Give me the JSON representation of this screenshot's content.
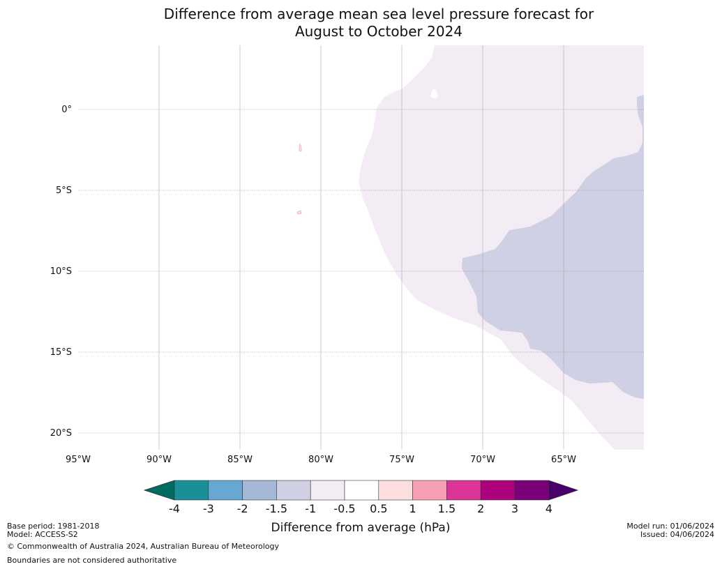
{
  "title": {
    "line1": "Difference from average mean sea level pressure forecast for",
    "line2": "August to October 2024"
  },
  "map": {
    "latitude_labels": [
      "0°",
      "5°S",
      "10°S",
      "15°S",
      "20°S"
    ],
    "longitude_labels": [
      "95°W",
      "90°W",
      "85°W",
      "80°W",
      "75°W",
      "70°W",
      "65°W"
    ],
    "gridlines": true,
    "regions": [
      {
        "name": "minus-0.5-to-minus-1",
        "color": "#f3ecf5"
      },
      {
        "name": "minus-1-to-minus-1.5",
        "color": "#d0d0e4"
      },
      {
        "name": "0.5-to-1-islands",
        "color": "#fcdede"
      }
    ]
  },
  "colorbar": {
    "title": "Difference from average (hPa)",
    "tick_labels": [
      "-4",
      "-3",
      "-2",
      "-1.5",
      "-1",
      "-0.5",
      "0.5",
      "1",
      "1.5",
      "2",
      "3",
      "4"
    ],
    "colors": [
      "#006b60",
      "#1a8f98",
      "#66a8d2",
      "#a5b8d6",
      "#d0d0e4",
      "#f3ecf5",
      "#ffffff",
      "#fcdede",
      "#f7a0b5",
      "#dd3497",
      "#ae017e",
      "#7a0177",
      "#49006a"
    ]
  },
  "footer": {
    "base_period": "Base period: 1981-2018",
    "model": "Model: ACCESS-S2",
    "copyright": "© Commonwealth of Australia 2024, Australian Bureau of Meteorology",
    "boundaries": "Boundaries are not considered authoritative",
    "model_run": "Model run: 01/06/2024",
    "issued": "Issued: 04/06/2024"
  }
}
